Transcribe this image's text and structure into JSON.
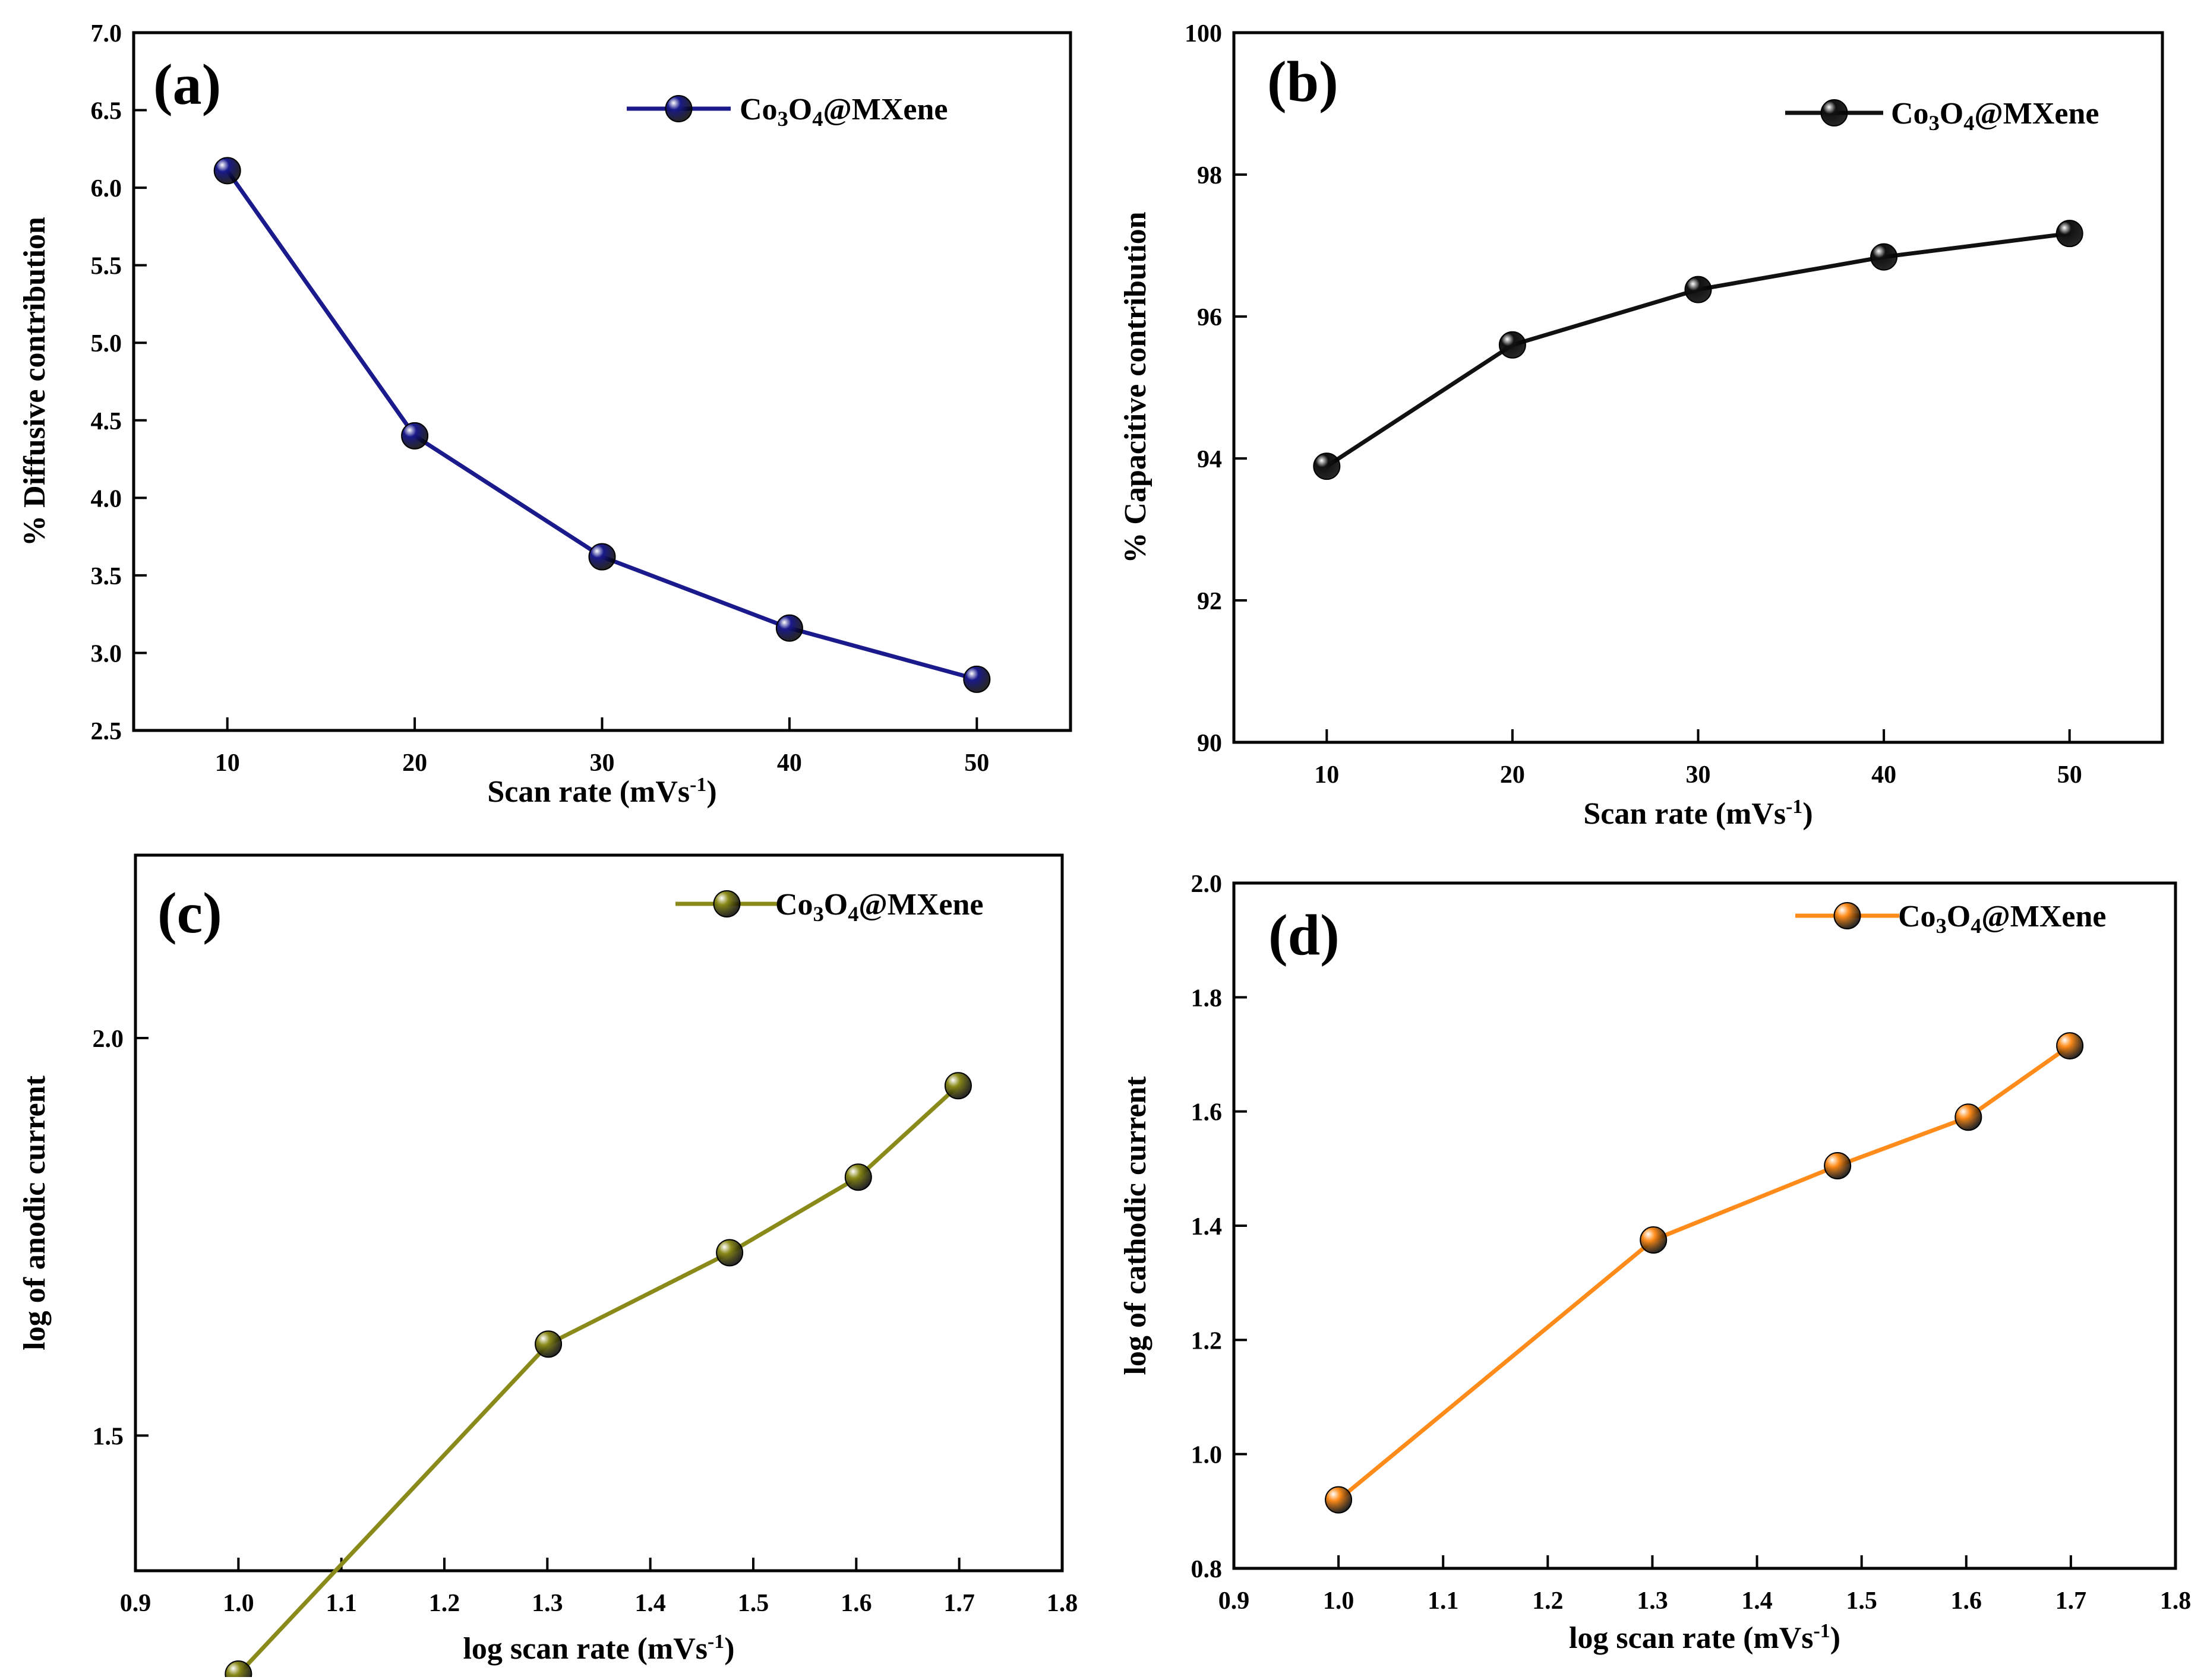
{
  "chart_data": [
    {
      "type": "line",
      "panel_label": "(a)",
      "xlabel": "Scan rate (mVs⁻¹)",
      "ylabel": "% Diffusive contribution",
      "xlim": [
        5,
        55
      ],
      "ylim": [
        2.5,
        7.0
      ],
      "xticks": [
        10,
        20,
        30,
        40,
        50
      ],
      "xtick_labels": [
        "10",
        "20",
        "30",
        "40",
        "50"
      ],
      "yticks": [
        2.5,
        3.0,
        3.5,
        4.0,
        4.5,
        5.0,
        5.5,
        6.0,
        6.5,
        7.0
      ],
      "ytick_labels": [
        "2.5",
        "3.0",
        "3.5",
        "4.0",
        "4.5",
        "5.0",
        "5.5",
        "6.0",
        "6.5",
        "7.0"
      ],
      "legend_position": "top-right",
      "series": [
        {
          "name": "Co₃O₄@MXene",
          "color": "#1a1a8c",
          "x": [
            10,
            20,
            30,
            40,
            50
          ],
          "y": [
            6.11,
            4.4,
            3.62,
            3.16,
            2.83
          ]
        }
      ]
    },
    {
      "type": "line",
      "panel_label": "(b)",
      "xlabel": "Scan rate (mVs⁻¹)",
      "ylabel": "% Capacitive contribution",
      "xlim": [
        5,
        55
      ],
      "ylim": [
        90,
        100
      ],
      "xticks": [
        10,
        20,
        30,
        40,
        50
      ],
      "xtick_labels": [
        "10",
        "20",
        "30",
        "40",
        "50"
      ],
      "yticks": [
        90,
        92,
        94,
        96,
        98,
        100
      ],
      "ytick_labels": [
        "90",
        "92",
        "94",
        "96",
        "98",
        "100"
      ],
      "legend_position": "top-right",
      "series": [
        {
          "name": "Co₃O₄@MXene",
          "color": "#111111",
          "x": [
            10,
            20,
            30,
            40,
            50
          ],
          "y": [
            93.89,
            95.6,
            96.38,
            96.84,
            97.17
          ]
        }
      ]
    },
    {
      "type": "line",
      "panel_label": "(c)",
      "xlabel": "log scan rate (mVs⁻¹)",
      "ylabel": "log of anodic current",
      "xlim": [
        0.9,
        1.8
      ],
      "ylim": [
        1.33,
        2.23
      ],
      "xticks": [
        0.9,
        1.0,
        1.1,
        1.2,
        1.3,
        1.4,
        1.5,
        1.6,
        1.7,
        1.8
      ],
      "xtick_labels": [
        "0.9",
        "1.0",
        "1.1",
        "1.2",
        "1.3",
        "1.4",
        "1.5",
        "1.6",
        "1.7",
        "1.8"
      ],
      "yticks": [
        1.5,
        2.0
      ],
      "ytick_labels": [
        "1.5",
        "2.0"
      ],
      "legend_position": "top-right",
      "series": [
        {
          "name": "Co₃O₄@MXene",
          "color": "#8a8a1a",
          "x": [
            1.0,
            1.301,
            1.477,
            1.602,
            1.699
          ],
          "y": [
            1.2,
            1.615,
            1.73,
            1.825,
            1.94
          ]
        }
      ]
    },
    {
      "type": "line",
      "panel_label": "(d)",
      "xlabel": "log scan rate (mVs⁻¹)",
      "ylabel": "log of cathodic current",
      "xlim": [
        0.9,
        1.8
      ],
      "ylim": [
        0.8,
        2.0
      ],
      "xticks": [
        0.9,
        1.0,
        1.1,
        1.2,
        1.3,
        1.4,
        1.5,
        1.6,
        1.7,
        1.8
      ],
      "xtick_labels": [
        "0.9",
        "1.0",
        "1.1",
        "1.2",
        "1.3",
        "1.4",
        "1.5",
        "1.6",
        "1.7",
        "1.8"
      ],
      "yticks": [
        0.8,
        1.0,
        1.2,
        1.4,
        1.6,
        1.8,
        2.0
      ],
      "ytick_labels": [
        "0.8",
        "1.0",
        "1.2",
        "1.4",
        "1.6",
        "1.8",
        "2.0"
      ],
      "legend_position": "top-right",
      "series": [
        {
          "name": "Co₃O₄@MXene",
          "color": "#ff8c1a",
          "x": [
            1.0,
            1.301,
            1.477,
            1.602,
            1.699
          ],
          "y": [
            0.92,
            1.375,
            1.505,
            1.59,
            1.715
          ]
        }
      ]
    }
  ]
}
